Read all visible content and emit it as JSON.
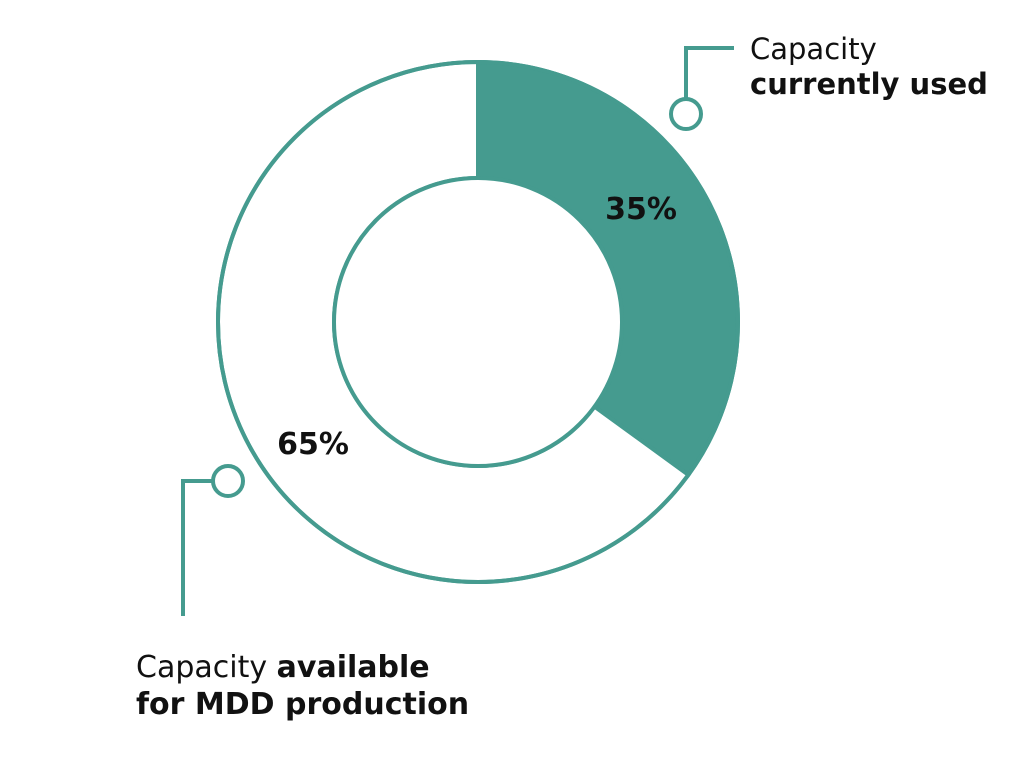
{
  "chart_data": {
    "type": "pie",
    "variant": "donut",
    "slices": [
      {
        "label_normal": "Capacity",
        "label_bold": "currently used",
        "value": 35,
        "value_label": "35%",
        "fill": "#459b8f"
      },
      {
        "label_normal": "Capacity",
        "label_bold": "available",
        "label_bold_line2": "for MDD production",
        "value": 65,
        "value_label": "65%",
        "fill": "#ffffff"
      }
    ]
  },
  "colors": {
    "accent": "#459b8f",
    "outline": "#459b8f",
    "text": "#111111",
    "background": "#ffffff"
  }
}
